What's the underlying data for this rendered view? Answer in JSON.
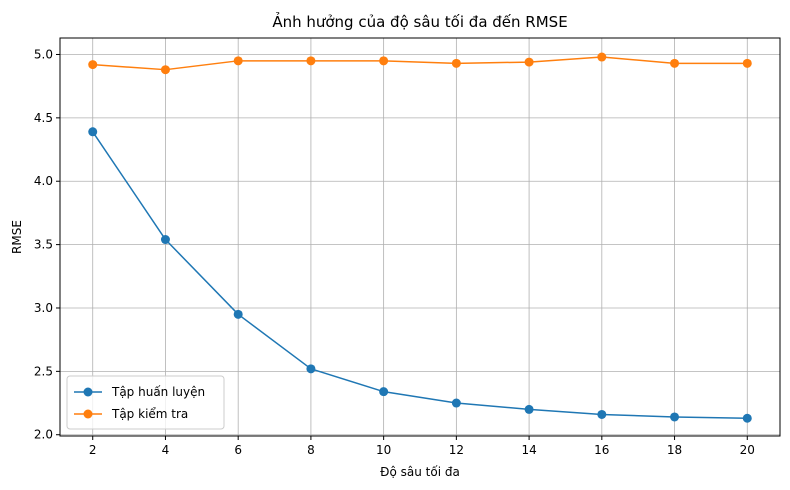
{
  "chart_data": {
    "type": "line",
    "title": "Ảnh hưởng của độ sâu tối đa đến RMSE",
    "xlabel": "Độ sâu tối đa",
    "ylabel": "RMSE",
    "x": [
      2,
      4,
      6,
      8,
      10,
      12,
      14,
      16,
      18,
      20
    ],
    "xticks": [
      "2",
      "4",
      "6",
      "8",
      "10",
      "12",
      "14",
      "16",
      "18",
      "20"
    ],
    "yticks": [
      "2.0",
      "2.5",
      "3.0",
      "3.5",
      "4.0",
      "4.5",
      "5.0"
    ],
    "ytick_values": [
      2.0,
      2.5,
      3.0,
      3.5,
      4.0,
      4.5,
      5.0
    ],
    "xlim": [
      1.1,
      20.9
    ],
    "ylim": [
      1.99,
      5.13
    ],
    "grid": true,
    "legend_position": "lower-left",
    "series": [
      {
        "name": "Tập huấn luyện",
        "color": "#1f77b4",
        "marker": "circle",
        "values": [
          4.39,
          3.54,
          2.95,
          2.52,
          2.34,
          2.25,
          2.2,
          2.16,
          2.14,
          2.13
        ]
      },
      {
        "name": "Tập kiểm tra",
        "color": "#ff7f0e",
        "marker": "circle",
        "values": [
          4.92,
          4.88,
          4.95,
          4.95,
          4.95,
          4.93,
          4.94,
          4.98,
          4.93,
          4.93
        ]
      }
    ]
  }
}
